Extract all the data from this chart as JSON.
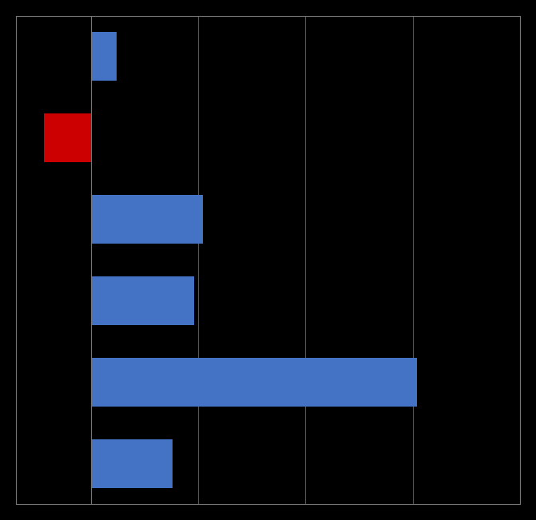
{
  "values": [
    0.12,
    -0.22,
    0.52,
    0.48,
    1.52,
    0.38
  ],
  "bar_colors": [
    "#4472C4",
    "#CC0000",
    "#4472C4",
    "#4472C4",
    "#4472C4",
    "#4472C4"
  ],
  "n_bars": 6,
  "background_color": "#000000",
  "xlim": [
    -0.35,
    2.0
  ],
  "ylim": [
    -0.5,
    5.5
  ],
  "grid_color": "#555555",
  "spine_color": "#777777",
  "tick_color": "#777777",
  "bar_height": 0.6,
  "fig_width": 6.71,
  "fig_height": 6.51,
  "dpi": 100
}
